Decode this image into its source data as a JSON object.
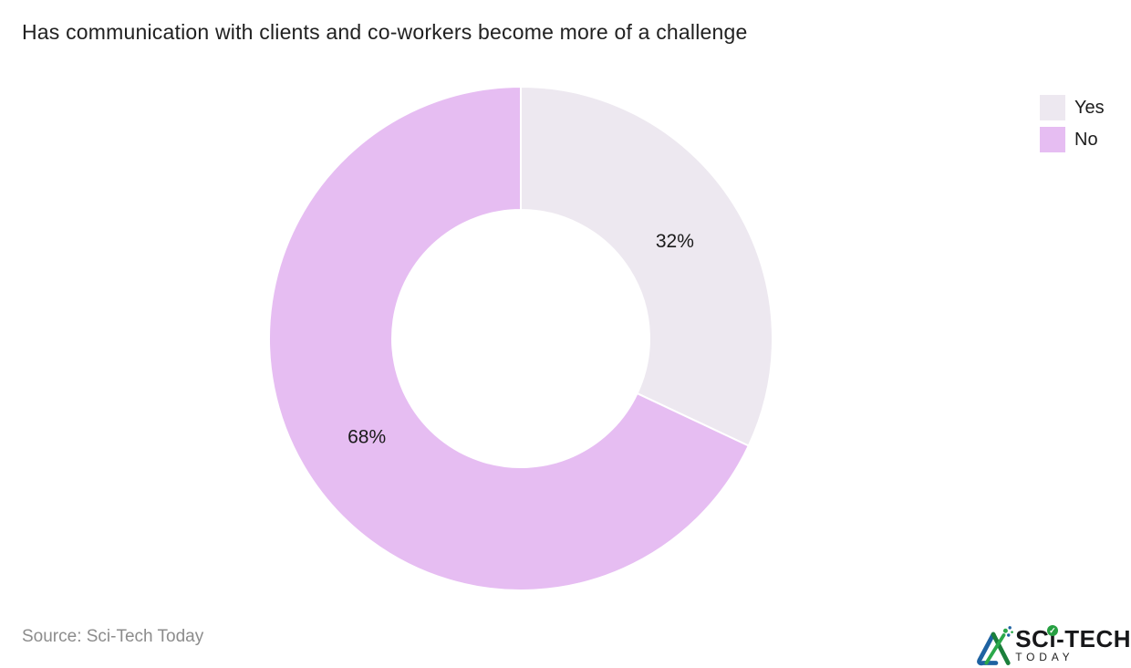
{
  "title": "Has communication with clients and co-workers become more of a challenge",
  "source": "Source: Sci-Tech Today",
  "logo": {
    "text_sc": "SC",
    "text_i": "ı",
    "text_tech": "-TECH",
    "today": "TODAY",
    "check_glyph": "✓"
  },
  "chart_data": {
    "type": "pie",
    "subtype": "donut",
    "title": "Has communication with clients and co-workers become more of a challenge",
    "labels": [
      "Yes",
      "No"
    ],
    "values": [
      32,
      68
    ],
    "unit": "%",
    "value_labels": [
      "32%",
      "68%"
    ],
    "colors": [
      "#EDE8F0",
      "#E6BDF2"
    ],
    "slice_border_color": "#FFFFFF",
    "label_color": "#1A1A1A",
    "background": "#FFFFFF",
    "legend_position": "top-right",
    "start_angle_deg": 0,
    "direction": "clockwise",
    "donut_hole_ratio": 0.51
  }
}
